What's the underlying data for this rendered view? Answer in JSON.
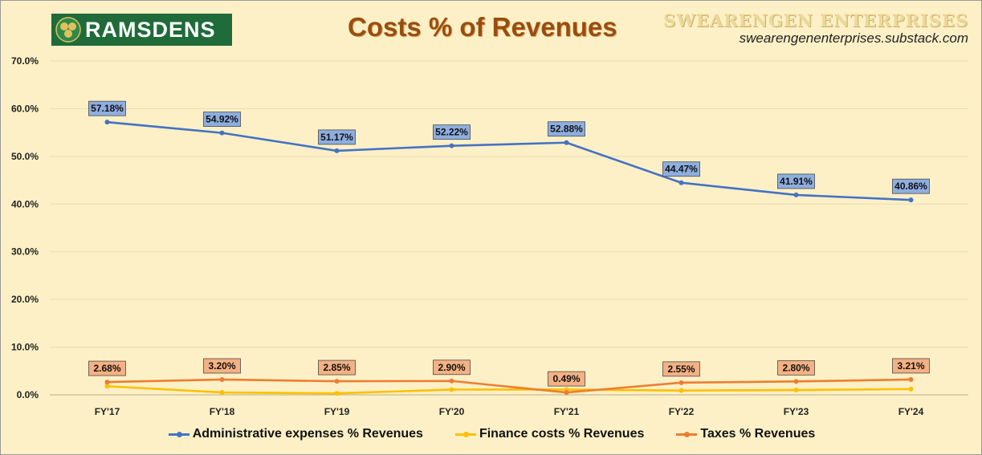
{
  "header": {
    "logo_text": "RAMSDENS",
    "title": "Costs % of Revenues",
    "brand_name": "SWEARENGEN ENTERPRISES",
    "brand_url": "swearengenenterprises.substack.com"
  },
  "colors": {
    "admin": "#4472c4",
    "finance": "#ffc000",
    "taxes": "#ed7d31",
    "admin_label_bg": "#8eaee0",
    "taxes_label_bg": "#f4b183",
    "grid": "#e6dcb8"
  },
  "chart_data": {
    "type": "line",
    "title": "Costs % of Revenues",
    "categories": [
      "FY'17",
      "FY'18",
      "FY'19",
      "FY'20",
      "FY'21",
      "FY'22",
      "FY'23",
      "FY'24"
    ],
    "ylim": [
      0,
      70
    ],
    "yticks": [
      "0.0%",
      "10.0%",
      "20.0%",
      "30.0%",
      "40.0%",
      "50.0%",
      "60.0%",
      "70.0%"
    ],
    "grid": true,
    "legend_position": "bottom",
    "series": [
      {
        "name": "Administrative expenses % Revenues",
        "values": [
          57.18,
          54.92,
          51.17,
          52.22,
          52.88,
          44.47,
          41.91,
          40.86
        ],
        "labels": [
          "57.18%",
          "54.92%",
          "51.17%",
          "52.22%",
          "52.88%",
          "44.47%",
          "41.91%",
          "40.86%"
        ]
      },
      {
        "name": "Finance costs % Revenues",
        "values": [
          1.8,
          0.5,
          0.3,
          1.1,
          1.1,
          0.9,
          1.0,
          1.2
        ]
      },
      {
        "name": "Taxes % Revenues",
        "values": [
          2.68,
          3.2,
          2.85,
          2.9,
          0.49,
          2.55,
          2.8,
          3.21
        ],
        "labels": [
          "2.68%",
          "3.20%",
          "2.85%",
          "2.90%",
          "0.49%",
          "2.55%",
          "2.80%",
          "3.21%"
        ]
      }
    ]
  }
}
